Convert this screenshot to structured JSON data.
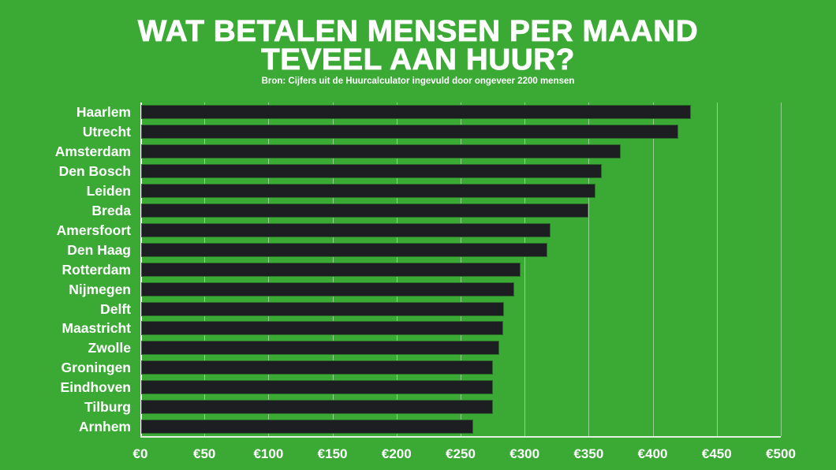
{
  "header": {
    "title_line1": "WAT BETALEN MENSEN PER MAAND",
    "title_line2": "TEVEEL AAN HUUR?",
    "subtitle": "Bron: Cijfers uit de Huurcalculator ingevuld door ongeveer 2200 mensen"
  },
  "colors": {
    "background": "#3aaa35",
    "bar": "#1c1e21",
    "text": "#ffffff"
  },
  "chart_data": {
    "type": "bar",
    "orientation": "horizontal",
    "title": "WAT BETALEN MENSEN PER MAAND TEVEEL AAN HUUR?",
    "subtitle": "Bron: Cijfers uit de Huurcalculator ingevuld door ongeveer 2200 mensen",
    "xlabel": "",
    "ylabel": "",
    "categories": [
      "Haarlem",
      "Utrecht",
      "Amsterdam",
      "Den Bosch",
      "Leiden",
      "Breda",
      "Amersfoort",
      "Den Haag",
      "Rotterdam",
      "Nijmegen",
      "Delft",
      "Maastricht",
      "Zwolle",
      "Groningen",
      "Eindhoven",
      "Tilburg",
      "Arnhem"
    ],
    "values": [
      430,
      420,
      375,
      360,
      355,
      350,
      320,
      318,
      297,
      292,
      284,
      283,
      280,
      275,
      275,
      275,
      260
    ],
    "xlim": [
      0,
      500
    ],
    "x_ticks": [
      "€0",
      "€50",
      "€100",
      "€150",
      "€200",
      "€250",
      "€300",
      "€350",
      "€400",
      "€450",
      "€500"
    ],
    "grid": "vertical",
    "legend": "none"
  }
}
